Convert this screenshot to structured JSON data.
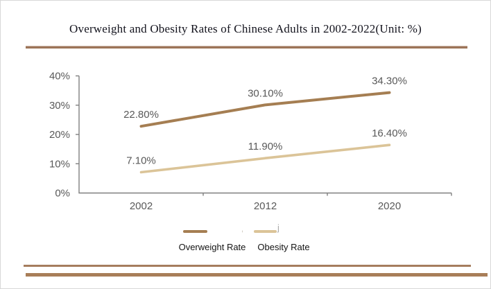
{
  "title": "Overweight and Obesity Rates of Chinese Adults in 2002-2022(Unit: %)",
  "chart_data": {
    "type": "line",
    "title": "Overweight and Obesity Rates of Chinese Adults in 2002-2022(Unit: %)",
    "categories": [
      "2002",
      "2012",
      "2020"
    ],
    "series": [
      {
        "name": "Overweight Rate",
        "values": [
          22.8,
          30.1,
          34.3
        ],
        "point_labels": [
          "22.80%",
          "30.10%",
          "34.30%"
        ],
        "color": "#a57e52"
      },
      {
        "name": "Obesity Rate",
        "values": [
          7.1,
          11.9,
          16.4
        ],
        "point_labels": [
          "7.10%",
          "11.90%",
          "16.40%"
        ],
        "color": "#dbc498"
      }
    ],
    "xlabel": "",
    "ylabel": "",
    "y_axis": {
      "min": 0,
      "max": 40,
      "tick_step": 10,
      "tick_labels": [
        "0%",
        "10%",
        "20%",
        "30%",
        "40%"
      ]
    },
    "grid": false,
    "legend_position": "bottom",
    "axis_color": "#7f7f7f",
    "label_color": "#595959"
  },
  "legend": {
    "items": [
      {
        "label": "Overweight Rate",
        "color": "#a57e52"
      },
      {
        "label": "Obesity Rate",
        "color": "#dbc498"
      }
    ],
    "artifact_dot": ",",
    "artifact": "j"
  },
  "decor": {
    "rule_color": "#9c7458"
  }
}
